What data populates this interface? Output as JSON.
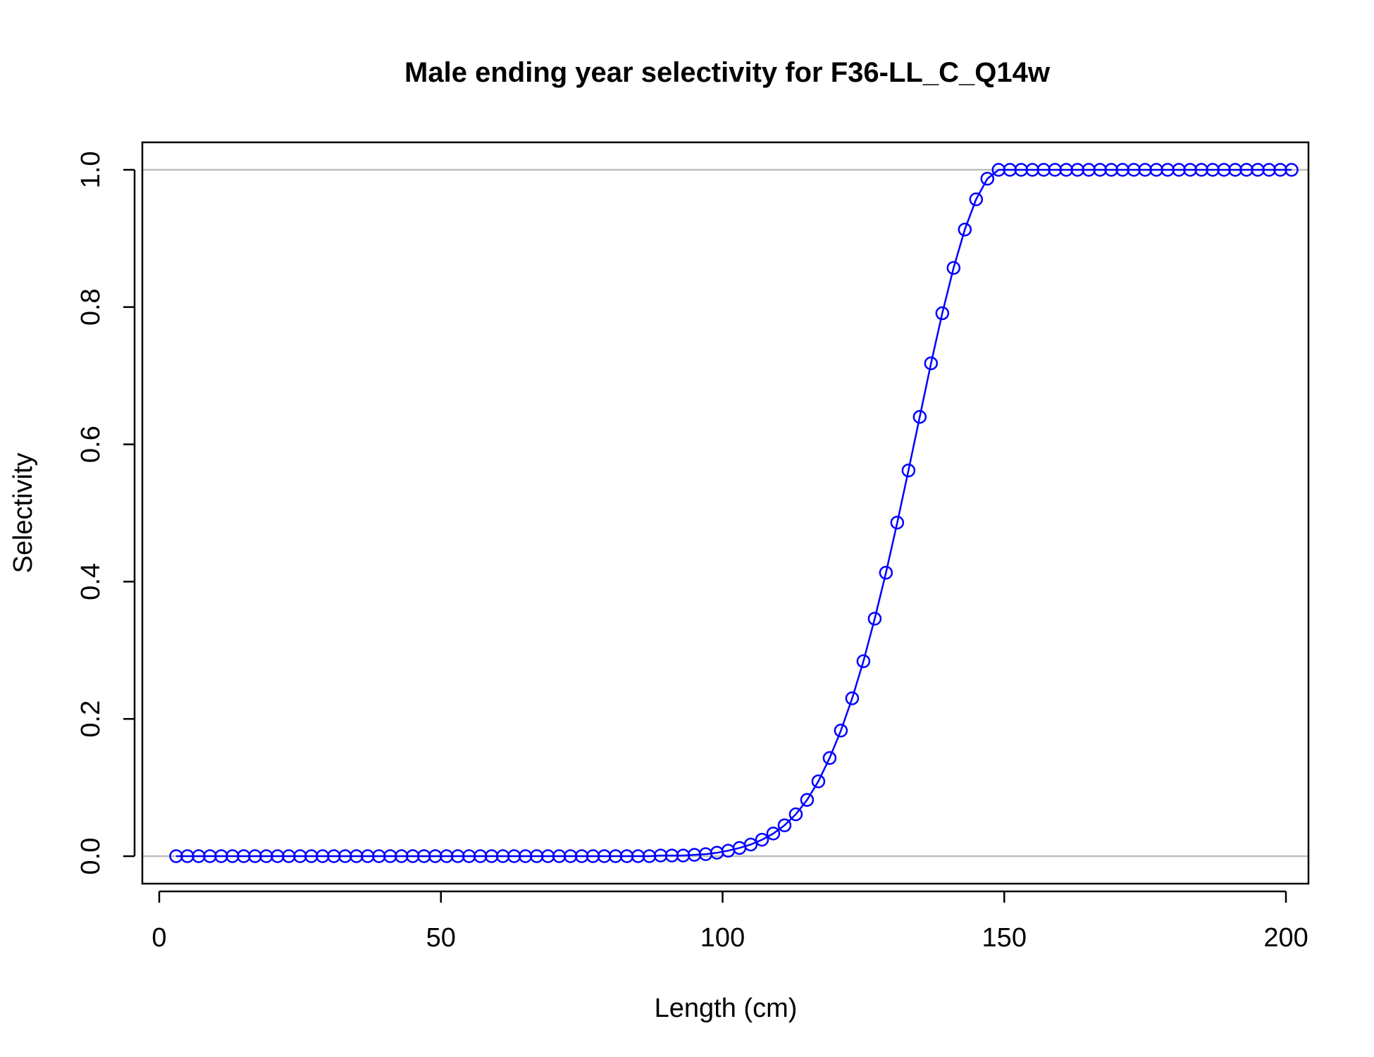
{
  "chart_data": {
    "type": "line",
    "title": "Male ending year selectivity for F36-LL_C_Q14w",
    "xlabel": "Length (cm)",
    "ylabel": "Selectivity",
    "xlim": [
      -3,
      204
    ],
    "ylim": [
      -0.04,
      1.04
    ],
    "x_ticks": [
      0,
      50,
      100,
      150,
      200
    ],
    "x_tick_labels": [
      "0",
      "50",
      "100",
      "150",
      "200"
    ],
    "y_ticks": [
      0.0,
      0.2,
      0.4,
      0.6,
      0.8,
      1.0
    ],
    "y_tick_labels": [
      "0.0",
      "0.2",
      "0.4",
      "0.6",
      "0.8",
      "1.0"
    ],
    "hlines": [
      0,
      1
    ],
    "grid": false,
    "legend": "none",
    "colors": {
      "series": "#0000ff",
      "reference_lines": "#bebebe",
      "axes": "#000000"
    },
    "series": [
      {
        "marker": "open-circle",
        "line": true,
        "x": [
          3,
          5,
          7,
          9,
          11,
          13,
          15,
          17,
          19,
          21,
          23,
          25,
          27,
          29,
          31,
          33,
          35,
          37,
          39,
          41,
          43,
          45,
          47,
          49,
          51,
          53,
          55,
          57,
          59,
          61,
          63,
          65,
          67,
          69,
          71,
          73,
          75,
          77,
          79,
          81,
          83,
          85,
          87,
          89,
          91,
          93,
          95,
          97,
          99,
          101,
          103,
          105,
          107,
          109,
          111,
          113,
          115,
          117,
          119,
          121,
          123,
          125,
          127,
          129,
          131,
          133,
          135,
          137,
          139,
          141,
          143,
          145,
          147,
          149,
          151,
          153,
          155,
          157,
          159,
          161,
          163,
          165,
          167,
          169,
          171,
          173,
          175,
          177,
          179,
          181,
          183,
          185,
          187,
          189,
          191,
          193,
          195,
          197,
          199,
          201
        ],
        "values": [
          0,
          0,
          0,
          0,
          0,
          0,
          0,
          0,
          0,
          0,
          0,
          0,
          0,
          0,
          0,
          0,
          0,
          0,
          0,
          0,
          0,
          0,
          0,
          0,
          0,
          0,
          0,
          0,
          0,
          0,
          0,
          0,
          0,
          0,
          0,
          0,
          0,
          0,
          0,
          0,
          0,
          0,
          0,
          0.001,
          0.001,
          0.001,
          0.002,
          0.003,
          0.005,
          0.008,
          0.012,
          0.017,
          0.024,
          0.033,
          0.045,
          0.061,
          0.082,
          0.109,
          0.143,
          0.183,
          0.23,
          0.284,
          0.346,
          0.413,
          0.486,
          0.562,
          0.64,
          0.718,
          0.791,
          0.857,
          0.913,
          0.957,
          0.987,
          1.0,
          1.0,
          1.0,
          1.0,
          1.0,
          1.0,
          1.0,
          1.0,
          1.0,
          1.0,
          1.0,
          1.0,
          1.0,
          1.0,
          1.0,
          1.0,
          1.0,
          1.0,
          1.0,
          1.0,
          1.0,
          1.0,
          1.0,
          1.0,
          1.0,
          1.0,
          1.0
        ]
      }
    ]
  }
}
